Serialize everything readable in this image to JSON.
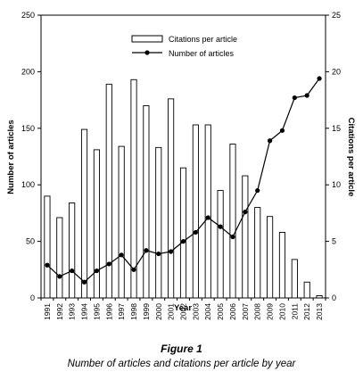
{
  "figure": {
    "label": "Figure 1",
    "caption": "Number of articles and citations per article by year"
  },
  "chart_data": {
    "type": "bar+line",
    "xlabel": "Year",
    "ylabel_left": "Number of articles",
    "ylabel_right": "Citations per article",
    "ylim_left": [
      0,
      250
    ],
    "ylim_right": [
      0,
      25
    ],
    "yticks_left": [
      0,
      50,
      100,
      150,
      200,
      250
    ],
    "yticks_right": [
      0,
      5,
      10,
      15,
      20,
      25
    ],
    "categories": [
      "1991",
      "1992",
      "1993",
      "1994",
      "1995",
      "1996",
      "1997",
      "1998",
      "1999",
      "2000",
      "2001",
      "2002",
      "2003",
      "2004",
      "2005",
      "2006",
      "2007",
      "2008",
      "2009",
      "2010",
      "2011",
      "2012",
      "2013"
    ],
    "legend_position": "top-center",
    "series": [
      {
        "name": "Citations per article",
        "type": "bar",
        "axis": "right",
        "values": [
          9.0,
          7.1,
          8.4,
          14.9,
          13.1,
          18.9,
          13.4,
          19.3,
          17.0,
          13.3,
          17.6,
          11.5,
          15.3,
          15.3,
          9.5,
          13.6,
          10.8,
          8.0,
          7.2,
          5.8,
          3.4,
          1.4,
          0.2
        ]
      },
      {
        "name": "Number of articles",
        "type": "line",
        "axis": "left",
        "marker": "circle",
        "values": [
          29,
          19,
          24,
          14,
          24,
          30,
          38,
          25,
          42,
          39,
          41,
          50,
          58,
          71,
          63,
          54,
          76,
          95,
          139,
          148,
          177,
          179,
          194
        ]
      }
    ]
  }
}
